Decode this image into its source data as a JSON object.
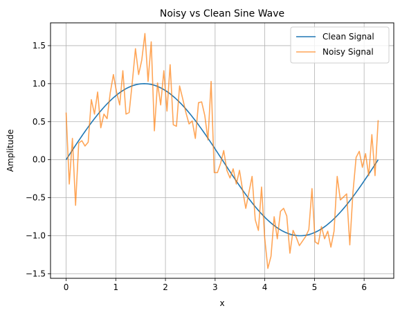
{
  "chart_data": {
    "type": "line",
    "title": "Noisy vs Clean Sine Wave",
    "xlabel": "x",
    "ylabel": "Amplitude",
    "xlim": [
      -0.314,
      6.597
    ],
    "ylim": [
      -1.56,
      1.8
    ],
    "xticks": [
      0,
      1,
      2,
      3,
      4,
      5,
      6
    ],
    "yticks": [
      -1.5,
      -1.0,
      -0.5,
      0.0,
      0.5,
      1.0,
      1.5
    ],
    "ytick_labels": [
      "−1.5",
      "−1.0",
      "−0.5",
      "0.0",
      "0.5",
      "1.0",
      "1.5"
    ],
    "grid": true,
    "legend_position": "top-right",
    "series": [
      {
        "name": "Clean Signal",
        "color": "#1f77b4",
        "alpha": 1.0,
        "function": "sin(x)",
        "x_range": [
          0,
          6.283
        ]
      },
      {
        "name": "Noisy Signal",
        "color": "#ff7f0e",
        "alpha": 0.7,
        "x_range": [
          0,
          6.283
        ],
        "values": [
          0.62,
          -0.32,
          0.28,
          -0.6,
          0.22,
          0.25,
          0.18,
          0.23,
          0.79,
          0.6,
          0.89,
          0.42,
          0.6,
          0.54,
          0.88,
          1.12,
          0.89,
          0.72,
          1.17,
          0.6,
          0.62,
          1.02,
          1.46,
          1.12,
          1.31,
          1.66,
          1.03,
          1.55,
          0.38,
          1.01,
          0.72,
          1.17,
          0.64,
          1.25,
          0.46,
          0.44,
          0.97,
          0.8,
          0.62,
          0.47,
          0.51,
          0.28,
          0.75,
          0.76,
          0.58,
          0.26,
          1.03,
          -0.17,
          -0.17,
          -0.05,
          0.12,
          -0.14,
          -0.24,
          -0.12,
          -0.32,
          -0.14,
          -0.4,
          -0.64,
          -0.43,
          -0.22,
          -0.79,
          -0.93,
          -0.36,
          -1.03,
          -1.43,
          -1.27,
          -0.75,
          -1.04,
          -0.68,
          -0.64,
          -0.74,
          -1.23,
          -0.93,
          -1.02,
          -1.13,
          -1.07,
          -1.01,
          -0.92,
          -0.38,
          -1.08,
          -1.11,
          -0.88,
          -1.04,
          -0.94,
          -1.15,
          -0.94,
          -0.22,
          -0.53,
          -0.49,
          -0.45,
          -1.12,
          -0.43,
          0.03,
          0.11,
          -0.1,
          0.08,
          -0.21,
          0.33,
          -0.21,
          0.52
        ]
      }
    ]
  }
}
